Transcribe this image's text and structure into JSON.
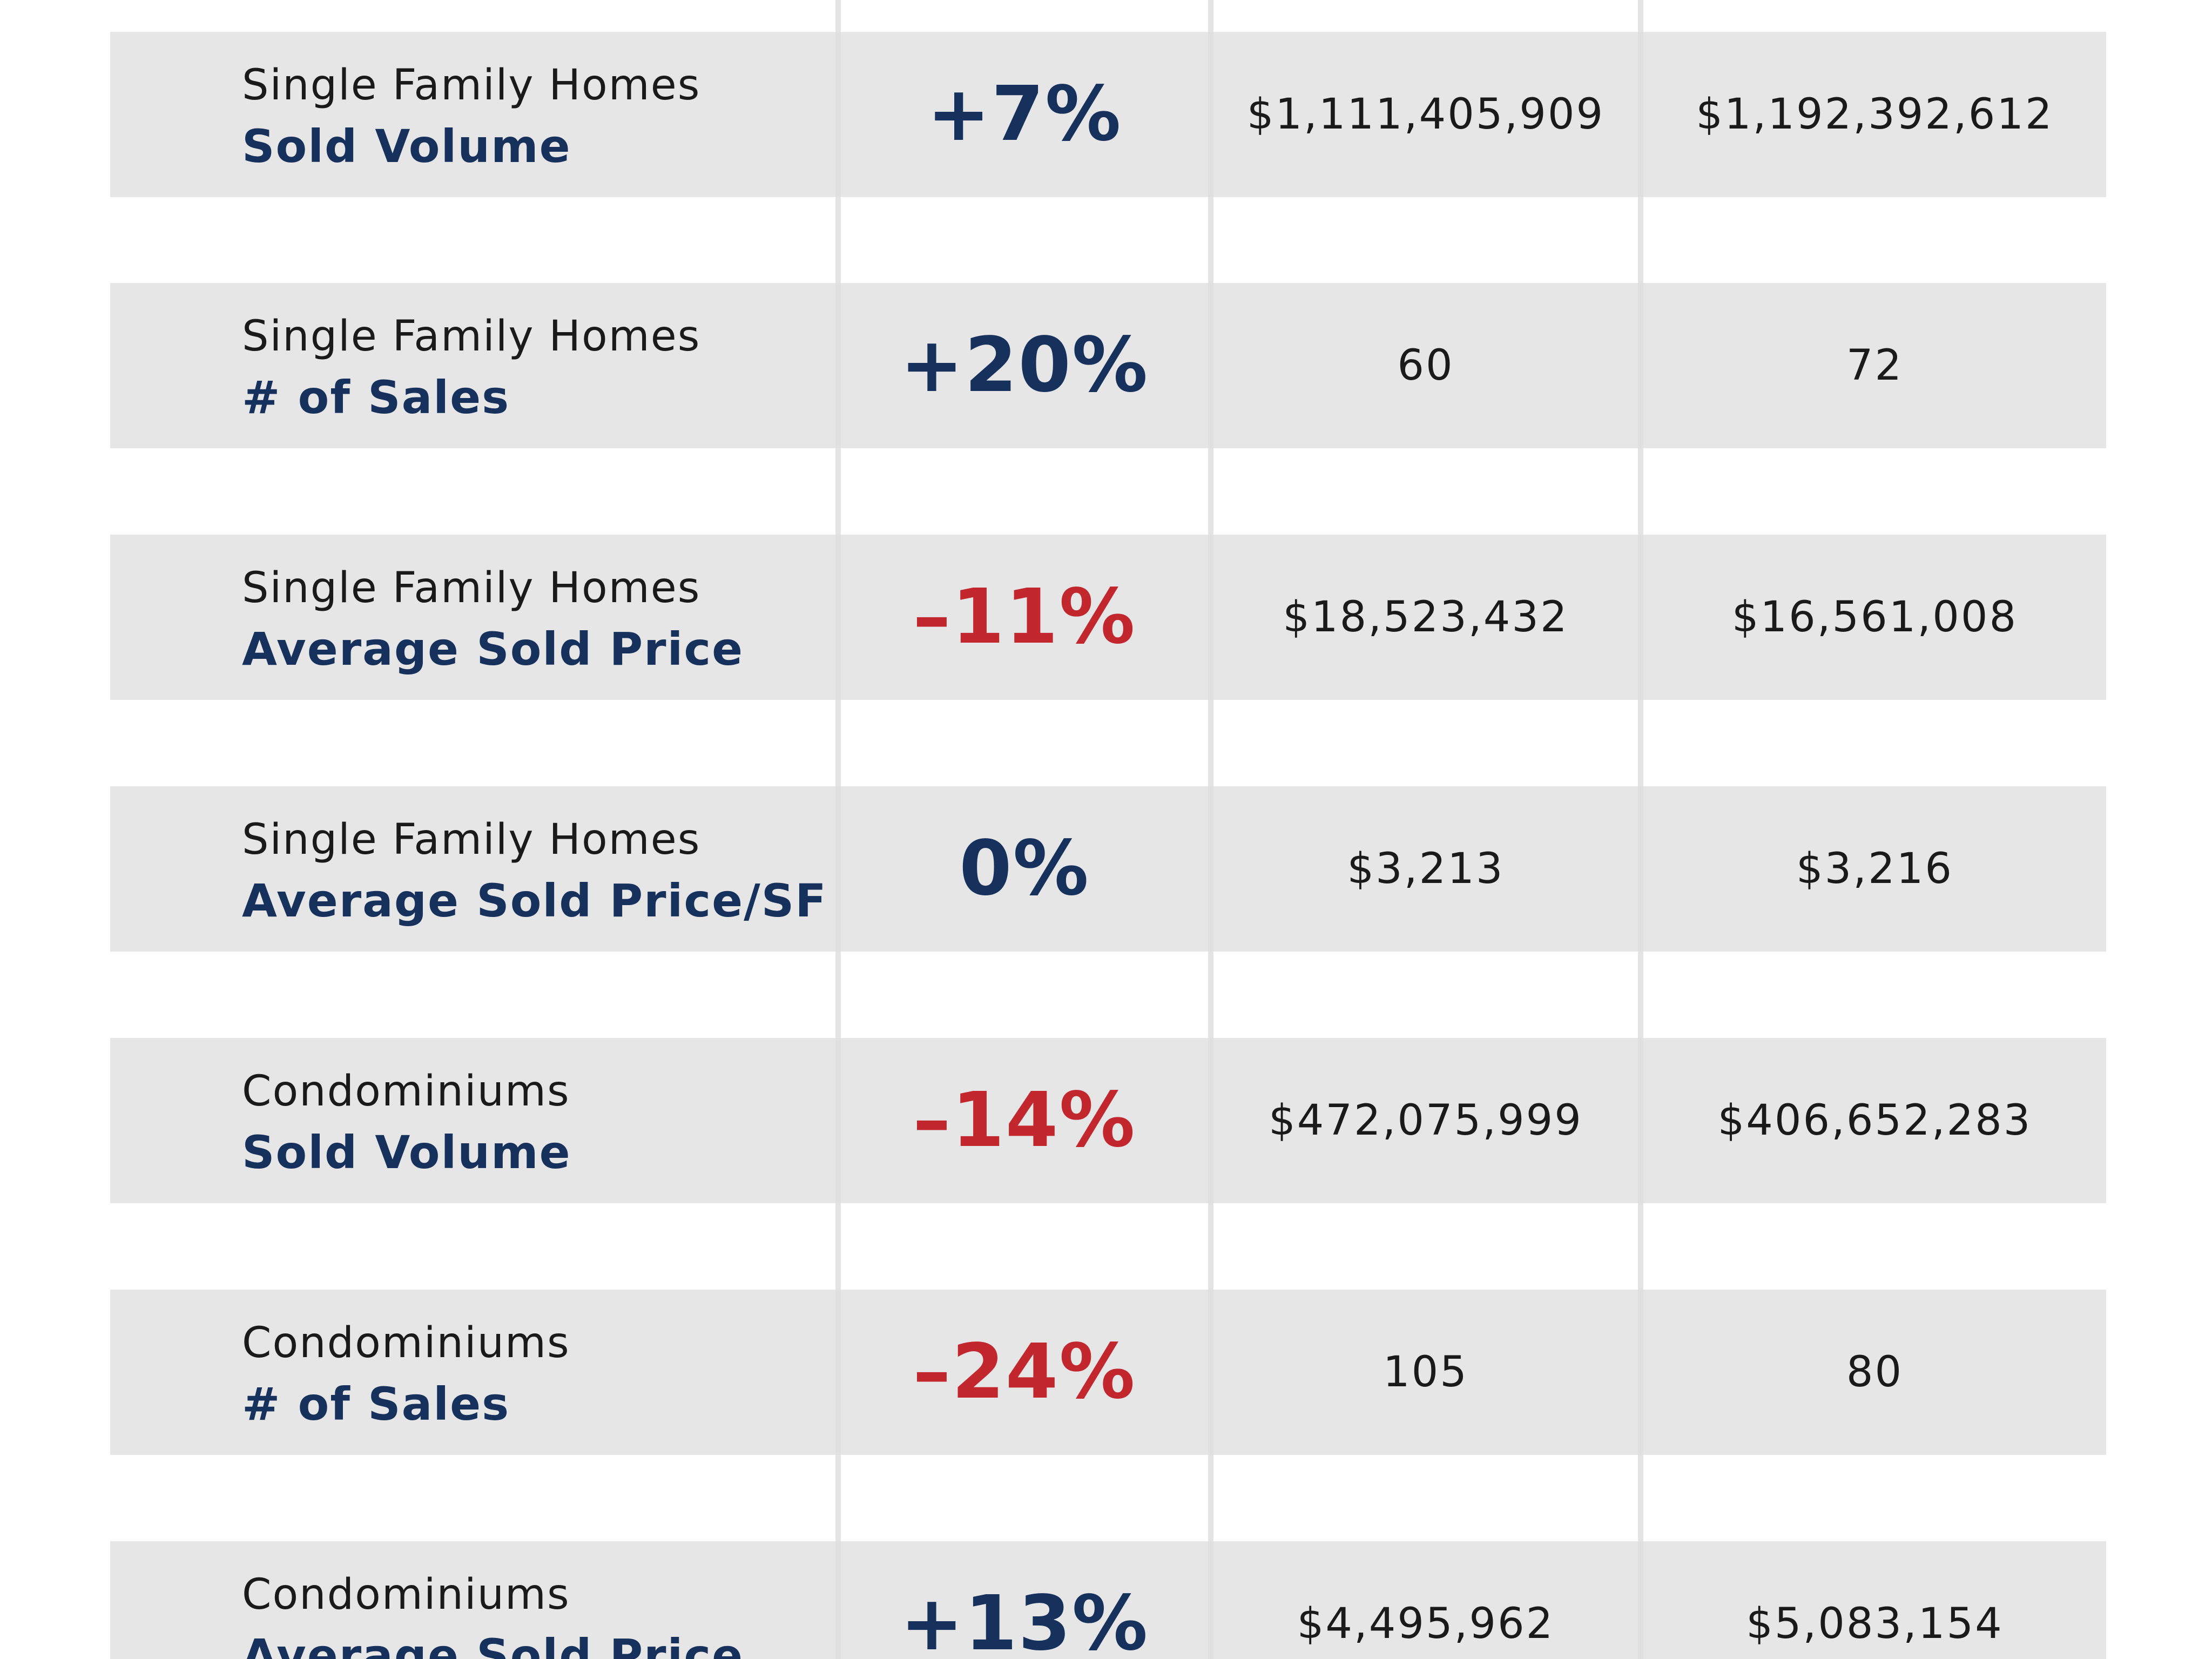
{
  "rows": [
    {
      "category": "Single Family Homes",
      "metric": "Sold Volume",
      "change": "+7%",
      "direction": "positive",
      "value_a": "$1,111,405,909",
      "value_b": "$1,192,392,612"
    },
    {
      "category": "Single Family Homes",
      "metric": "# of Sales",
      "change": "+20%",
      "direction": "positive",
      "value_a": "60",
      "value_b": "72"
    },
    {
      "category": "Single Family Homes",
      "metric": "Average Sold Price",
      "change": "–11%",
      "direction": "negative",
      "value_a": "$18,523,432",
      "value_b": "$16,561,008"
    },
    {
      "category": "Single Family Homes",
      "metric": "Average Sold Price/SF",
      "change": "0%",
      "direction": "positive",
      "value_a": "$3,213",
      "value_b": "$3,216"
    },
    {
      "category": "Condominiums",
      "metric": "Sold Volume",
      "change": "–14%",
      "direction": "negative",
      "value_a": "$472,075,999",
      "value_b": "$406,652,283"
    },
    {
      "category": "Condominiums",
      "metric": "# of Sales",
      "change": "–24%",
      "direction": "negative",
      "value_a": "105",
      "value_b": "80"
    },
    {
      "category": "Condominiums",
      "metric": "Average Sold Price",
      "change": "+13%",
      "direction": "positive",
      "value_a": "$4,495,962",
      "value_b": "$5,083,154"
    }
  ],
  "colors": {
    "row_background": "#e6e6e7",
    "divider": "#e4e4e4",
    "positive": "#15315c",
    "negative": "#c2272d",
    "value_text": "#1a1a1a"
  }
}
